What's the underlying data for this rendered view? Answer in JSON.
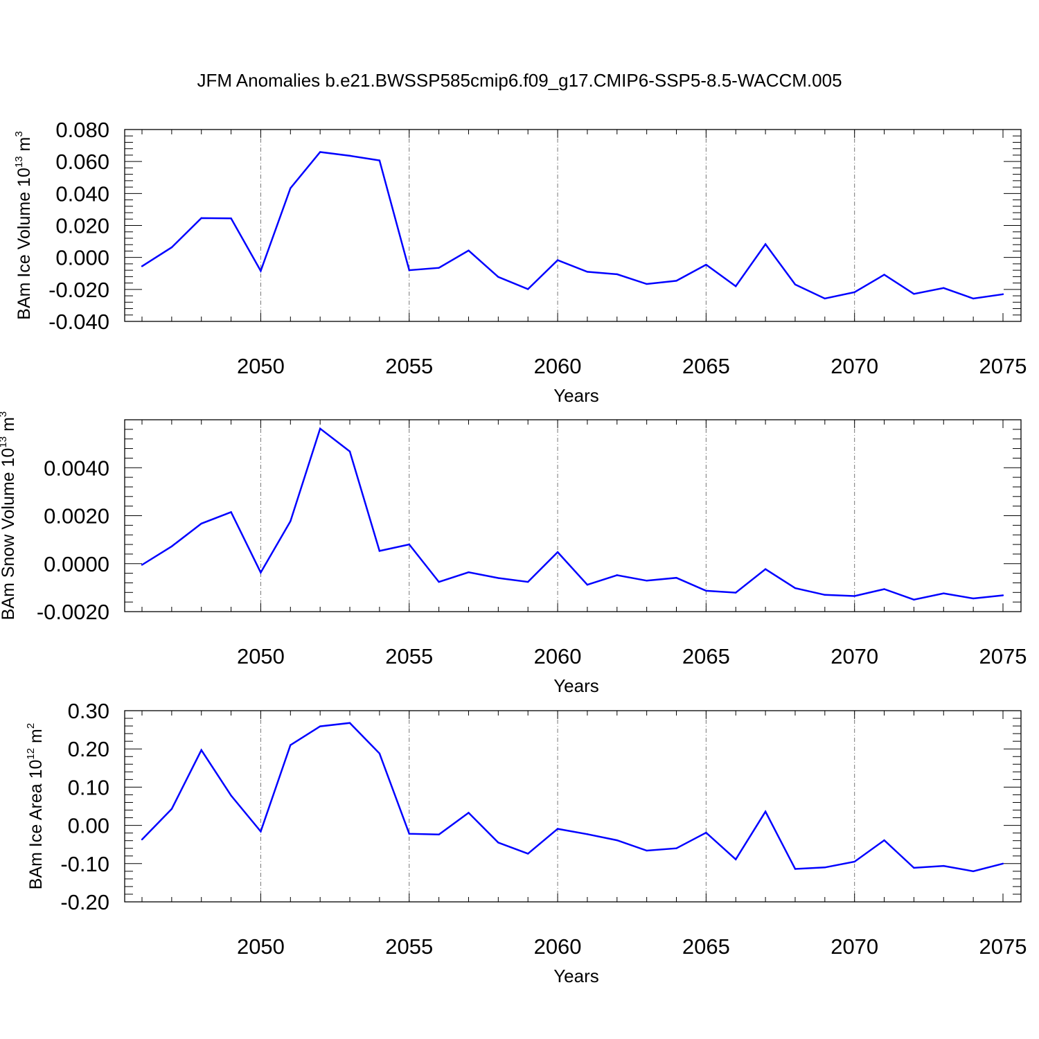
{
  "figure": {
    "title": "JFM Anomalies b.e21.BWSSP585cmip6.f09_g17.CMIP6-SSP5-8.5-WACCM.005",
    "line_color": "#0000ff",
    "grid_color": "#777777"
  },
  "chart_data": [
    {
      "type": "line",
      "name": "ice-volume",
      "ylabel": {
        "main": "BAm Ice Volume 10",
        "exp": "13",
        "unit": " m",
        "unit_exp": "3"
      },
      "xlabel": "Years",
      "xlim": [
        2046,
        2075
      ],
      "ylim": [
        -0.04,
        0.08
      ],
      "yticks": [
        -0.04,
        -0.02,
        0.0,
        0.02,
        0.04,
        0.06,
        0.08
      ],
      "ytick_labels": [
        "-0.040",
        "-0.020",
        "0.000",
        "0.020",
        "0.040",
        "0.060",
        "0.080"
      ],
      "xticks": [
        2050,
        2055,
        2060,
        2065,
        2070,
        2075
      ],
      "xtick_labels": [
        "2050",
        "2055",
        "2060",
        "2065",
        "2070",
        "2075"
      ],
      "grid_x": [
        2050,
        2055,
        2060,
        2065,
        2070
      ],
      "x": [
        2046,
        2047,
        2048,
        2049,
        2050,
        2051,
        2052,
        2053,
        2054,
        2055,
        2056,
        2057,
        2058,
        2059,
        2060,
        2061,
        2062,
        2063,
        2064,
        2065,
        2066,
        2067,
        2068,
        2069,
        2070,
        2071,
        2072,
        2073,
        2074,
        2075
      ],
      "y": [
        -0.0055,
        0.0063,
        0.0246,
        0.0244,
        -0.0084,
        0.0433,
        0.0659,
        0.0636,
        0.0607,
        -0.008,
        -0.0065,
        0.0043,
        -0.0122,
        -0.0198,
        -0.0017,
        -0.009,
        -0.0105,
        -0.0166,
        -0.0146,
        -0.0045,
        -0.018,
        0.0083,
        -0.0169,
        -0.0257,
        -0.0217,
        -0.0108,
        -0.0228,
        -0.0191,
        -0.0257,
        -0.023
      ]
    },
    {
      "type": "line",
      "name": "snow-volume",
      "ylabel": {
        "main": "BAm Snow Volume 10",
        "exp": "13",
        "unit": " m",
        "unit_exp": "3"
      },
      "xlabel": "Years",
      "xlim": [
        2046,
        2075
      ],
      "ylim": [
        -0.002,
        0.006
      ],
      "yticks": [
        -0.002,
        0.0,
        0.002,
        0.004
      ],
      "ytick_labels": [
        "-0.0020",
        "0.0000",
        "0.0020",
        "0.0040"
      ],
      "xticks": [
        2050,
        2055,
        2060,
        2065,
        2070,
        2075
      ],
      "xtick_labels": [
        "2050",
        "2055",
        "2060",
        "2065",
        "2070",
        "2075"
      ],
      "grid_x": [
        2050,
        2055,
        2060,
        2065,
        2070
      ],
      "x": [
        2046,
        2047,
        2048,
        2049,
        2050,
        2051,
        2052,
        2053,
        2054,
        2055,
        2056,
        2057,
        2058,
        2059,
        2060,
        2061,
        2062,
        2063,
        2064,
        2065,
        2066,
        2067,
        2068,
        2069,
        2070,
        2071,
        2072,
        2073,
        2074,
        2075
      ],
      "y": [
        -5e-05,
        0.00072,
        0.00167,
        0.00215,
        -0.00037,
        0.00177,
        0.00563,
        0.00468,
        0.00053,
        0.0008,
        -0.00076,
        -0.00036,
        -0.0006,
        -0.00076,
        0.00048,
        -0.00088,
        -0.00048,
        -0.00071,
        -0.00059,
        -0.00113,
        -0.00121,
        -0.00023,
        -0.00102,
        -0.0013,
        -0.00135,
        -0.00106,
        -0.0015,
        -0.00124,
        -0.00145,
        -0.00132
      ]
    },
    {
      "type": "line",
      "name": "ice-area",
      "ylabel": {
        "main": "BAm Ice Area 10",
        "exp": "12",
        "unit": " m",
        "unit_exp": "2"
      },
      "xlabel": "Years",
      "xlim": [
        2046,
        2075
      ],
      "ylim": [
        -0.2,
        0.3
      ],
      "yticks": [
        -0.2,
        -0.1,
        0.0,
        0.1,
        0.2,
        0.3
      ],
      "ytick_labels": [
        "-0.20",
        "-0.10",
        "0.00",
        "0.10",
        "0.20",
        "0.30"
      ],
      "xticks": [
        2050,
        2055,
        2060,
        2065,
        2070,
        2075
      ],
      "xtick_labels": [
        "2050",
        "2055",
        "2060",
        "2065",
        "2070",
        "2075"
      ],
      "grid_x": [
        2050,
        2055,
        2060,
        2065,
        2070
      ],
      "x": [
        2046,
        2047,
        2048,
        2049,
        2050,
        2051,
        2052,
        2053,
        2054,
        2055,
        2056,
        2057,
        2058,
        2059,
        2060,
        2061,
        2062,
        2063,
        2064,
        2065,
        2066,
        2067,
        2068,
        2069,
        2070,
        2071,
        2072,
        2073,
        2074,
        2075
      ],
      "y": [
        -0.037,
        0.043,
        0.197,
        0.078,
        -0.016,
        0.21,
        0.259,
        0.268,
        0.188,
        -0.022,
        -0.024,
        0.033,
        -0.045,
        -0.074,
        -0.009,
        -0.023,
        -0.039,
        -0.066,
        -0.06,
        -0.019,
        -0.089,
        0.036,
        -0.114,
        -0.11,
        -0.095,
        -0.039,
        -0.111,
        -0.106,
        -0.12,
        -0.1
      ]
    }
  ]
}
